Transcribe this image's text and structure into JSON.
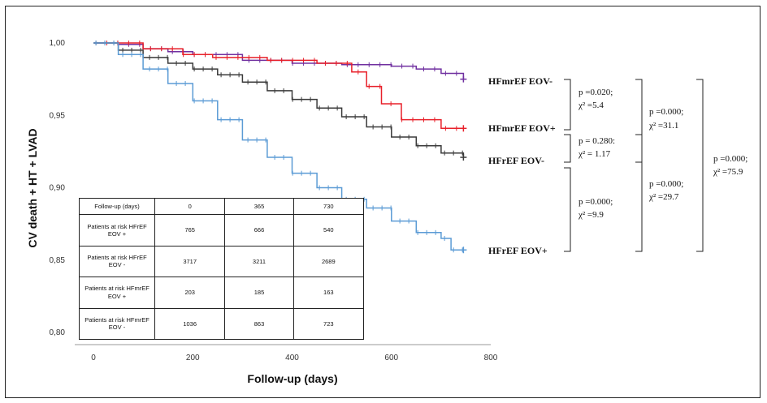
{
  "chart_data": {
    "type": "line",
    "ylabel": "CV death + HT + LVAD",
    "xlabel": "Follow-up (days)",
    "xlim": [
      0,
      800
    ],
    "ylim": [
      0.8,
      1.0
    ],
    "x_ticks": [
      "0",
      "200",
      "400",
      "600",
      "800"
    ],
    "y_ticks": [
      "1,00",
      "0,95",
      "0,90",
      "0,85",
      "0,80"
    ],
    "series": [
      {
        "name": "HFmrEF EOV-",
        "color": "#7030a0",
        "x": [
          0,
          50,
          100,
          150,
          200,
          300,
          400,
          500,
          550,
          600,
          650,
          700,
          745
        ],
        "y": [
          1.0,
          0.999,
          0.996,
          0.994,
          0.992,
          0.988,
          0.986,
          0.985,
          0.985,
          0.984,
          0.982,
          0.979,
          0.975
        ]
      },
      {
        "name": "HFmrEF EOV+",
        "color": "#e8202a",
        "x": [
          0,
          100,
          180,
          240,
          350,
          450,
          520,
          550,
          580,
          620,
          650,
          690,
          700,
          745
        ],
        "y": [
          1.0,
          0.996,
          0.992,
          0.99,
          0.988,
          0.986,
          0.98,
          0.97,
          0.958,
          0.947,
          0.947,
          0.947,
          0.941,
          0.941
        ]
      },
      {
        "name": "HFrEF EOV-",
        "color": "#3a3a3a",
        "x": [
          0,
          50,
          100,
          150,
          200,
          250,
          300,
          350,
          400,
          450,
          500,
          550,
          600,
          650,
          700,
          745
        ],
        "y": [
          1.0,
          0.995,
          0.99,
          0.986,
          0.982,
          0.978,
          0.973,
          0.967,
          0.961,
          0.955,
          0.949,
          0.942,
          0.935,
          0.929,
          0.924,
          0.921
        ]
      },
      {
        "name": "HFrEF EOV+",
        "color": "#5b9bd5",
        "x": [
          0,
          50,
          100,
          150,
          200,
          250,
          300,
          350,
          400,
          450,
          500,
          550,
          600,
          650,
          700,
          720,
          745
        ],
        "y": [
          1.0,
          0.992,
          0.982,
          0.972,
          0.96,
          0.947,
          0.933,
          0.921,
          0.91,
          0.9,
          0.892,
          0.886,
          0.877,
          0.869,
          0.865,
          0.857,
          0.857
        ]
      }
    ],
    "annotations": [
      {
        "p": "p =0.020;",
        "chi": "χ² =5.4"
      },
      {
        "p": "p = 0.280:",
        "chi": "χ² = 1.17"
      },
      {
        "p": "p =0.000;",
        "chi": "χ² =9.9"
      },
      {
        "p": "p =0.000;",
        "chi": "χ² =31.1"
      },
      {
        "p": "p =0.000;",
        "chi": "χ² =29.7"
      },
      {
        "p": "p =0.000;",
        "chi": "χ² =75.9"
      }
    ]
  },
  "risk_table": {
    "header": [
      "Follow-up (days)",
      "0",
      "365",
      "730"
    ],
    "rows": [
      {
        "label": "Patients at risk HFrEF EOV +",
        "values": [
          "765",
          "666",
          "540"
        ]
      },
      {
        "label": "Patients at risk HFrEF EOV -",
        "values": [
          "3717",
          "3211",
          "2689"
        ]
      },
      {
        "label": "Patients at risk HFmrEF EOV +",
        "values": [
          "203",
          "185",
          "163"
        ]
      },
      {
        "label": "Patients at risk HFmrEF EOV -",
        "values": [
          "1036",
          "863",
          "723"
        ]
      }
    ]
  }
}
